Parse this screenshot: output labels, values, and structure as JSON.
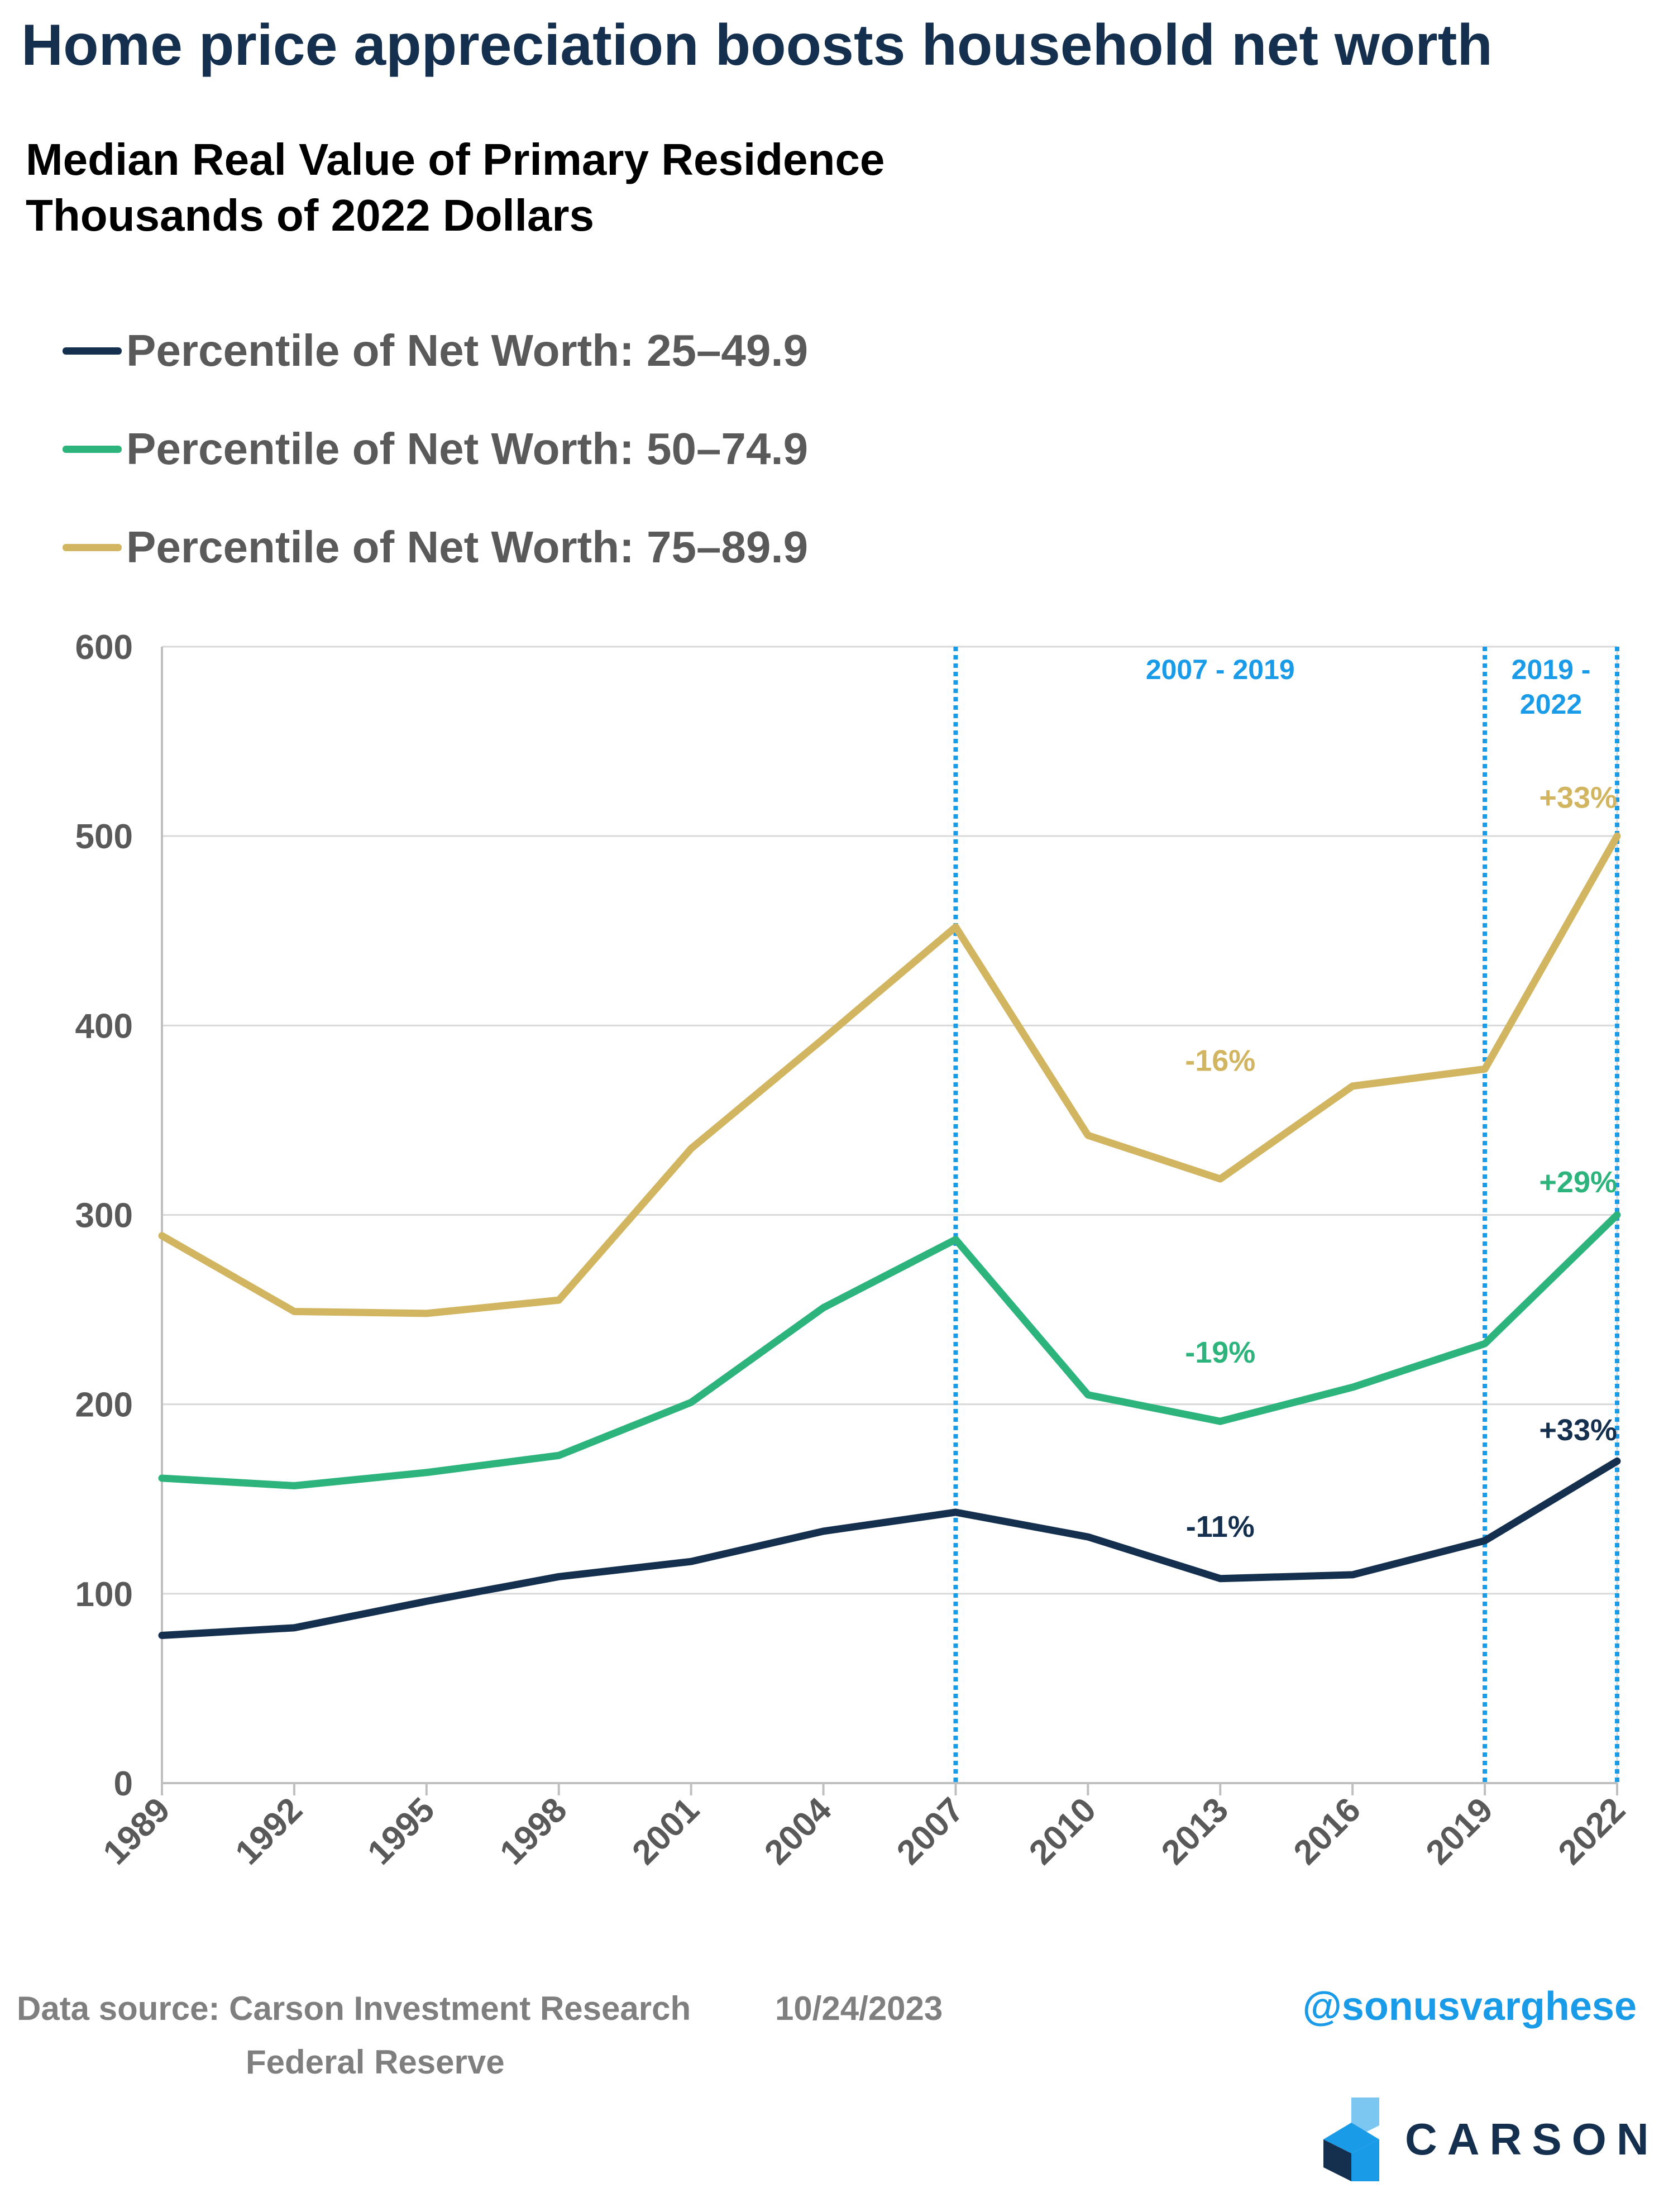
{
  "title": "Home price appreciation boosts household net worth",
  "subtitle_line1": "Median Real Value of Primary Residence",
  "subtitle_line2": "Thousands of 2022 Dollars",
  "chart_data": {
    "type": "line",
    "x": [
      "1989",
      "1992",
      "1995",
      "1998",
      "2001",
      "2004",
      "2007",
      "2010",
      "2013",
      "2016",
      "2019",
      "2022"
    ],
    "ylim": [
      0,
      600
    ],
    "yticks": [
      0,
      100,
      200,
      300,
      400,
      500,
      600
    ],
    "grid": true,
    "legend_position": "top-left",
    "series": [
      {
        "name": "Percentile of Net Worth: 25–49.9",
        "color": "#14304e",
        "values": [
          78,
          82,
          96,
          109,
          117,
          133,
          143,
          130,
          108,
          110,
          128,
          170
        ]
      },
      {
        "name": "Percentile of Net Worth: 50–74.9",
        "color": "#2db37c",
        "values": [
          161,
          157,
          164,
          173,
          201,
          251,
          287,
          205,
          191,
          209,
          232,
          300
        ]
      },
      {
        "name": "Percentile of Net Worth: 75–89.9",
        "color": "#d2b560",
        "values": [
          289,
          249,
          248,
          255,
          335,
          393,
          452,
          342,
          319,
          368,
          377,
          500
        ]
      }
    ],
    "vlines": [
      "2007",
      "2019",
      "2022"
    ],
    "period_labels": [
      {
        "lines": [
          "2007 - 2019"
        ],
        "x_between": [
          "2007",
          "2019"
        ]
      },
      {
        "lines": [
          "2019 -",
          "2022"
        ],
        "x_between": [
          "2019",
          "2022"
        ]
      }
    ],
    "annotations": [
      {
        "text": "-16%",
        "series": 2,
        "x": "2013",
        "y": 376
      },
      {
        "text": "+33%",
        "series": 2,
        "x": "2022",
        "y": 515
      },
      {
        "text": "-19%",
        "series": 1,
        "x": "2013",
        "y": 222
      },
      {
        "text": "+29%",
        "series": 1,
        "x": "2022",
        "y": 312
      },
      {
        "text": "-11%",
        "series": 0,
        "x": "2013",
        "y": 130
      },
      {
        "text": "+33%",
        "series": 0,
        "x": "2022",
        "y": 181
      }
    ],
    "vline_color": "#1a9be8"
  },
  "footer": {
    "source_line1": "Data source: Carson Investment Research",
    "source_line2": "Federal Reserve",
    "date": "10/24/2023",
    "handle": "@sonusvarghese"
  },
  "logo": {
    "text": "CARSON",
    "icon": "carson-chevron-icon",
    "colors": [
      "#14304e",
      "#1a9be8",
      "#7cc7f2"
    ]
  }
}
